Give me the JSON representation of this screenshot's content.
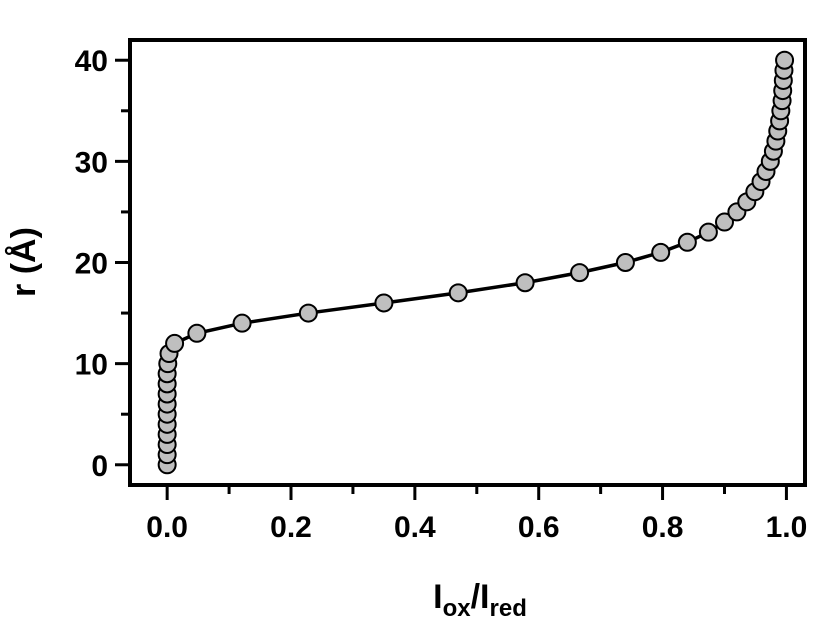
{
  "chart_data": {
    "type": "scatter",
    "xlabel": {
      "main": "I",
      "sub1": "ox",
      "sep": "/I",
      "sub2": "red"
    },
    "ylabel": "r (Å)",
    "xlim": [
      -0.06,
      1.03
    ],
    "ylim": [
      -2,
      42
    ],
    "x_ticks": [
      "0.0",
      "0.2",
      "0.4",
      "0.6",
      "0.8",
      "1.0"
    ],
    "y_ticks": [
      "0",
      "10",
      "20",
      "30",
      "40"
    ],
    "grid": false,
    "marker_color": "#bfbfbf",
    "line_color": "#000000",
    "series": [
      {
        "points": [
          [
            0.0,
            0
          ],
          [
            0.0,
            1
          ],
          [
            0.0,
            2
          ],
          [
            0.0,
            3
          ],
          [
            0.0,
            4
          ],
          [
            0.0,
            5
          ],
          [
            0.0,
            6
          ],
          [
            0.0,
            7
          ],
          [
            0.0,
            8
          ],
          [
            0.0,
            9
          ],
          [
            0.001,
            10
          ],
          [
            0.003,
            11
          ],
          [
            0.012,
            12
          ],
          [
            0.048,
            13
          ],
          [
            0.121,
            14
          ],
          [
            0.228,
            15
          ],
          [
            0.35,
            16
          ],
          [
            0.47,
            17
          ],
          [
            0.578,
            18
          ],
          [
            0.666,
            19
          ],
          [
            0.74,
            20
          ],
          [
            0.797,
            21
          ],
          [
            0.84,
            22
          ],
          [
            0.874,
            23
          ],
          [
            0.9,
            24
          ],
          [
            0.92,
            25
          ],
          [
            0.936,
            26
          ],
          [
            0.949,
            27
          ],
          [
            0.959,
            28
          ],
          [
            0.967,
            29
          ],
          [
            0.974,
            30
          ],
          [
            0.979,
            31
          ],
          [
            0.983,
            32
          ],
          [
            0.986,
            33
          ],
          [
            0.989,
            34
          ],
          [
            0.991,
            35
          ],
          [
            0.993,
            36
          ],
          [
            0.994,
            37
          ],
          [
            0.995,
            38
          ],
          [
            0.996,
            39
          ],
          [
            0.997,
            40
          ]
        ]
      }
    ]
  }
}
